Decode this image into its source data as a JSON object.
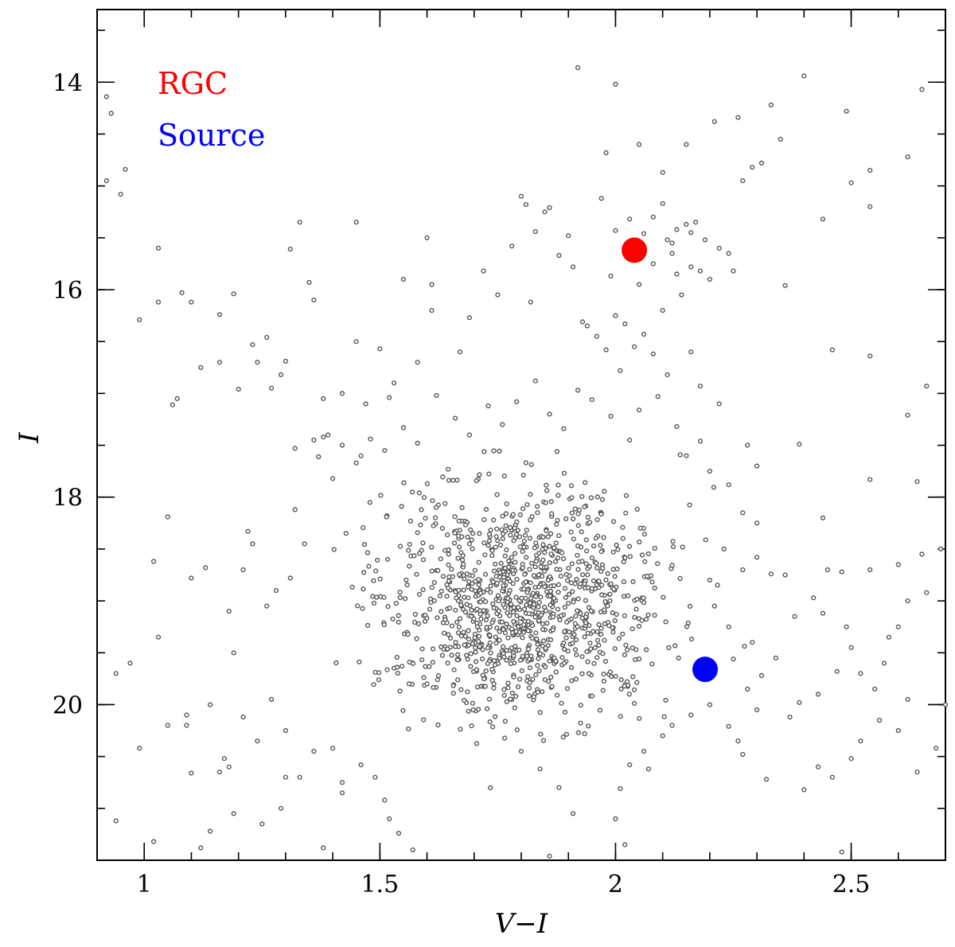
{
  "chart_data": {
    "type": "scatter",
    "title": "",
    "xlabel": "V−I",
    "ylabel": "I",
    "xlim": [
      0.9,
      2.7
    ],
    "ylim": [
      21.5,
      13.3
    ],
    "y_inverted": true,
    "x_ticks": [
      1,
      1.5,
      2,
      2.5
    ],
    "x_tick_labels": [
      "1",
      "1.5",
      "2",
      "2.5"
    ],
    "y_ticks": [
      14,
      16,
      18,
      20
    ],
    "y_tick_labels": [
      "14",
      "16",
      "18",
      "20"
    ],
    "x_minor_step": 0.1,
    "y_minor_step": 0.5,
    "grid": false,
    "legend_position": "top-left",
    "legend": [
      {
        "label": "RGC",
        "color": "#ff0000"
      },
      {
        "label": "Source",
        "color": "#0000ff"
      }
    ],
    "highlight_points": [
      {
        "name": "RGC",
        "x": 2.04,
        "y": 15.62,
        "color": "#ff0000"
      },
      {
        "name": "Source",
        "x": 2.19,
        "y": 19.66,
        "color": "#0000ff"
      }
    ],
    "stars_color": "#555555",
    "stars": [
      [
        0.92,
        14.14
      ],
      [
        0.93,
        14.3
      ],
      [
        0.92,
        14.95
      ],
      [
        0.95,
        15.08
      ],
      [
        0.96,
        14.84
      ],
      [
        0.99,
        16.29
      ],
      [
        1.03,
        15.6
      ],
      [
        1.03,
        16.12
      ],
      [
        1.08,
        16.03
      ],
      [
        1.1,
        16.12
      ],
      [
        1.06,
        17.11
      ],
      [
        1.07,
        17.05
      ],
      [
        1.05,
        18.19
      ],
      [
        1.02,
        18.62
      ],
      [
        1.12,
        16.75
      ],
      [
        1.16,
        16.7
      ],
      [
        1.19,
        16.04
      ],
      [
        1.16,
        16.24
      ],
      [
        1.2,
        16.96
      ],
      [
        1.23,
        16.53
      ],
      [
        1.26,
        16.46
      ],
      [
        1.24,
        16.7
      ],
      [
        1.27,
        16.95
      ],
      [
        1.29,
        16.82
      ],
      [
        1.3,
        16.69
      ],
      [
        1.31,
        15.61
      ],
      [
        1.33,
        15.35
      ],
      [
        1.35,
        15.93
      ],
      [
        1.36,
        16.1
      ],
      [
        1.38,
        17.05
      ],
      [
        1.32,
        17.53
      ],
      [
        1.36,
        17.45
      ],
      [
        1.38,
        17.42
      ],
      [
        1.39,
        17.4
      ],
      [
        1.42,
        17.0
      ],
      [
        1.45,
        16.5
      ],
      [
        1.45,
        15.35
      ],
      [
        1.47,
        17.1
      ],
      [
        1.5,
        16.57
      ],
      [
        1.52,
        17.04
      ],
      [
        1.53,
        16.9
      ],
      [
        1.55,
        15.9
      ],
      [
        1.58,
        16.7
      ],
      [
        1.61,
        16.2
      ],
      [
        1.61,
        15.95
      ],
      [
        1.6,
        15.5
      ],
      [
        1.67,
        16.6
      ],
      [
        1.69,
        16.27
      ],
      [
        1.72,
        15.82
      ],
      [
        1.75,
        16.05
      ],
      [
        1.78,
        15.58
      ],
      [
        1.8,
        15.1
      ],
      [
        1.81,
        15.18
      ],
      [
        1.83,
        15.44
      ],
      [
        1.85,
        15.25
      ],
      [
        1.86,
        15.21
      ],
      [
        1.82,
        16.12
      ],
      [
        1.88,
        15.67
      ],
      [
        1.9,
        15.48
      ],
      [
        1.91,
        15.78
      ],
      [
        1.93,
        16.31
      ],
      [
        1.94,
        16.35
      ],
      [
        1.96,
        16.45
      ],
      [
        1.97,
        15.12
      ],
      [
        1.98,
        14.68
      ],
      [
        1.99,
        15.87
      ],
      [
        2.0,
        16.25
      ],
      [
        2.0,
        15.43
      ],
      [
        2.03,
        15.32
      ],
      [
        2.06,
        15.46
      ],
      [
        2.05,
        15.95
      ],
      [
        2.08,
        15.75
      ],
      [
        2.08,
        15.3
      ],
      [
        2.1,
        15.17
      ],
      [
        2.11,
        15.52
      ],
      [
        2.12,
        15.65
      ],
      [
        2.13,
        15.42
      ],
      [
        2.15,
        15.37
      ],
      [
        2.16,
        15.45
      ],
      [
        2.17,
        15.35
      ],
      [
        2.18,
        15.82
      ],
      [
        2.19,
        15.52
      ],
      [
        2.2,
        15.9
      ],
      [
        2.22,
        15.6
      ],
      [
        2.24,
        15.65
      ],
      [
        2.25,
        15.82
      ],
      [
        2.27,
        14.95
      ],
      [
        2.29,
        14.82
      ],
      [
        2.31,
        14.78
      ],
      [
        2.33,
        14.22
      ],
      [
        2.35,
        14.55
      ],
      [
        2.36,
        15.96
      ],
      [
        2.4,
        13.94
      ],
      [
        2.44,
        15.32
      ],
      [
        2.49,
        14.28
      ],
      [
        2.5,
        14.97
      ],
      [
        2.54,
        15.2
      ],
      [
        2.54,
        14.85
      ],
      [
        2.62,
        14.72
      ],
      [
        2.65,
        14.07
      ],
      [
        2.12,
        15.55
      ],
      [
        2.13,
        15.85
      ],
      [
        2.16,
        15.78
      ],
      [
        2.14,
        16.05
      ],
      [
        2.1,
        16.2
      ],
      [
        2.06,
        16.43
      ],
      [
        2.04,
        16.55
      ],
      [
        2.01,
        16.78
      ],
      [
        2.02,
        16.33
      ],
      [
        1.98,
        16.58
      ],
      [
        2.08,
        16.62
      ],
      [
        2.11,
        16.82
      ],
      [
        2.09,
        17.03
      ],
      [
        2.05,
        17.16
      ],
      [
        2.03,
        17.45
      ],
      [
        1.99,
        17.22
      ],
      [
        1.95,
        17.06
      ],
      [
        1.92,
        16.97
      ],
      [
        1.89,
        17.34
      ],
      [
        1.86,
        17.2
      ],
      [
        1.83,
        16.88
      ],
      [
        1.79,
        17.08
      ],
      [
        1.76,
        17.3
      ],
      [
        1.73,
        17.12
      ],
      [
        1.69,
        17.4
      ],
      [
        1.66,
        17.24
      ],
      [
        1.62,
        17.02
      ],
      [
        1.58,
        17.48
      ],
      [
        1.55,
        17.33
      ],
      [
        1.51,
        17.55
      ],
      [
        1.48,
        17.44
      ],
      [
        1.45,
        17.67
      ],
      [
        1.42,
        17.5
      ],
      [
        1.4,
        17.82
      ],
      [
        1.37,
        17.61
      ],
      [
        2.13,
        17.32
      ],
      [
        2.15,
        17.6
      ],
      [
        2.18,
        17.46
      ],
      [
        2.2,
        17.75
      ],
      [
        2.24,
        17.88
      ],
      [
        2.28,
        17.5
      ],
      [
        2.3,
        17.7
      ],
      [
        2.18,
        16.93
      ],
      [
        2.22,
        17.1
      ],
      [
        2.16,
        16.6
      ],
      [
        2.0,
        14.02
      ],
      [
        2.05,
        14.6
      ],
      [
        2.1,
        14.87
      ],
      [
        2.15,
        14.6
      ],
      [
        2.21,
        14.38
      ],
      [
        2.26,
        14.34
      ],
      [
        1.92,
        13.86
      ],
      [
        2.46,
        16.58
      ],
      [
        2.54,
        16.64
      ],
      [
        2.62,
        17.21
      ],
      [
        2.66,
        16.93
      ],
      [
        2.64,
        17.85
      ],
      [
        2.54,
        17.83
      ],
      [
        2.44,
        18.2
      ],
      [
        2.39,
        17.49
      ],
      [
        1.32,
        18.12
      ],
      [
        1.34,
        18.45
      ],
      [
        1.31,
        18.78
      ],
      [
        1.28,
        18.9
      ],
      [
        1.26,
        19.05
      ],
      [
        1.23,
        18.45
      ],
      [
        1.21,
        18.7
      ],
      [
        1.22,
        18.33
      ],
      [
        1.18,
        19.1
      ],
      [
        1.19,
        19.5
      ],
      [
        1.13,
        18.68
      ],
      [
        1.1,
        18.78
      ],
      [
        1.03,
        19.35
      ],
      [
        0.94,
        19.7
      ],
      [
        0.97,
        19.6
      ],
      [
        1.09,
        20.1
      ],
      [
        1.05,
        20.2
      ],
      [
        1.09,
        20.2
      ],
      [
        1.14,
        20.0
      ],
      [
        1.17,
        20.52
      ],
      [
        1.21,
        20.12
      ],
      [
        1.24,
        20.35
      ],
      [
        1.27,
        19.95
      ],
      [
        1.3,
        20.25
      ],
      [
        1.3,
        20.7
      ],
      [
        1.33,
        20.7
      ],
      [
        1.36,
        20.45
      ],
      [
        1.29,
        21.0
      ],
      [
        1.25,
        21.15
      ],
      [
        1.19,
        21.05
      ],
      [
        1.14,
        21.22
      ],
      [
        1.12,
        21.38
      ],
      [
        1.02,
        21.32
      ],
      [
        0.94,
        21.12
      ],
      [
        0.99,
        20.42
      ],
      [
        1.1,
        20.66
      ],
      [
        1.16,
        20.65
      ],
      [
        1.18,
        20.6
      ],
      [
        1.4,
        20.42
      ],
      [
        1.42,
        20.75
      ],
      [
        1.42,
        20.85
      ],
      [
        1.46,
        20.58
      ],
      [
        1.49,
        20.7
      ],
      [
        1.51,
        20.92
      ],
      [
        1.52,
        21.1
      ],
      [
        1.54,
        21.24
      ],
      [
        1.57,
        21.4
      ],
      [
        1.58,
        21.58
      ],
      [
        1.38,
        21.38
      ],
      [
        1.86,
        21.46
      ],
      [
        2.0,
        21.1
      ],
      [
        2.02,
        21.35
      ],
      [
        1.91,
        21.05
      ],
      [
        1.88,
        20.8
      ],
      [
        1.84,
        20.62
      ],
      [
        1.8,
        20.45
      ],
      [
        2.32,
        20.72
      ],
      [
        2.4,
        20.82
      ],
      [
        2.43,
        20.6
      ],
      [
        2.46,
        20.7
      ],
      [
        2.48,
        21.42
      ],
      [
        2.5,
        20.52
      ],
      [
        2.52,
        20.35
      ],
      [
        2.56,
        20.15
      ],
      [
        2.6,
        20.25
      ],
      [
        2.62,
        19.95
      ],
      [
        2.64,
        20.65
      ],
      [
        2.68,
        20.42
      ],
      [
        2.7,
        20.0
      ],
      [
        2.58,
        19.35
      ],
      [
        2.6,
        19.25
      ],
      [
        2.62,
        19.0
      ],
      [
        2.66,
        18.92
      ],
      [
        2.69,
        18.5
      ],
      [
        2.65,
        18.55
      ],
      [
        2.6,
        18.65
      ],
      [
        2.54,
        18.7
      ],
      [
        2.48,
        18.72
      ],
      [
        2.45,
        18.7
      ],
      [
        2.42,
        18.97
      ],
      [
        2.44,
        19.12
      ],
      [
        2.49,
        19.25
      ],
      [
        2.5,
        19.45
      ],
      [
        2.52,
        19.7
      ],
      [
        2.55,
        19.85
      ],
      [
        2.57,
        19.6
      ],
      [
        2.47,
        19.68
      ],
      [
        2.43,
        19.9
      ],
      [
        2.39,
        19.98
      ],
      [
        2.37,
        20.12
      ],
      [
        2.34,
        19.55
      ],
      [
        2.31,
        19.72
      ],
      [
        2.29,
        19.4
      ],
      [
        2.28,
        19.85
      ],
      [
        2.3,
        20.05
      ],
      [
        2.25,
        19.56
      ],
      [
        2.24,
        19.25
      ],
      [
        2.21,
        19.05
      ],
      [
        2.2,
        18.8
      ],
      [
        2.23,
        18.5
      ],
      [
        2.27,
        18.7
      ],
      [
        2.3,
        18.58
      ],
      [
        2.33,
        18.74
      ],
      [
        2.27,
        18.15
      ],
      [
        2.3,
        18.25
      ],
      [
        2.36,
        18.75
      ],
      [
        2.38,
        19.15
      ],
      [
        2.26,
        20.35
      ],
      [
        2.24,
        20.21
      ],
      [
        2.27,
        20.48
      ],
      [
        2.2,
        20.0
      ],
      [
        2.16,
        20.1
      ],
      [
        2.12,
        20.2
      ],
      [
        2.1,
        20.3
      ],
      [
        2.06,
        20.45
      ],
      [
        2.03,
        20.58
      ],
      [
        2.07,
        20.62
      ],
      [
        2.01,
        20.81
      ]
    ]
  }
}
